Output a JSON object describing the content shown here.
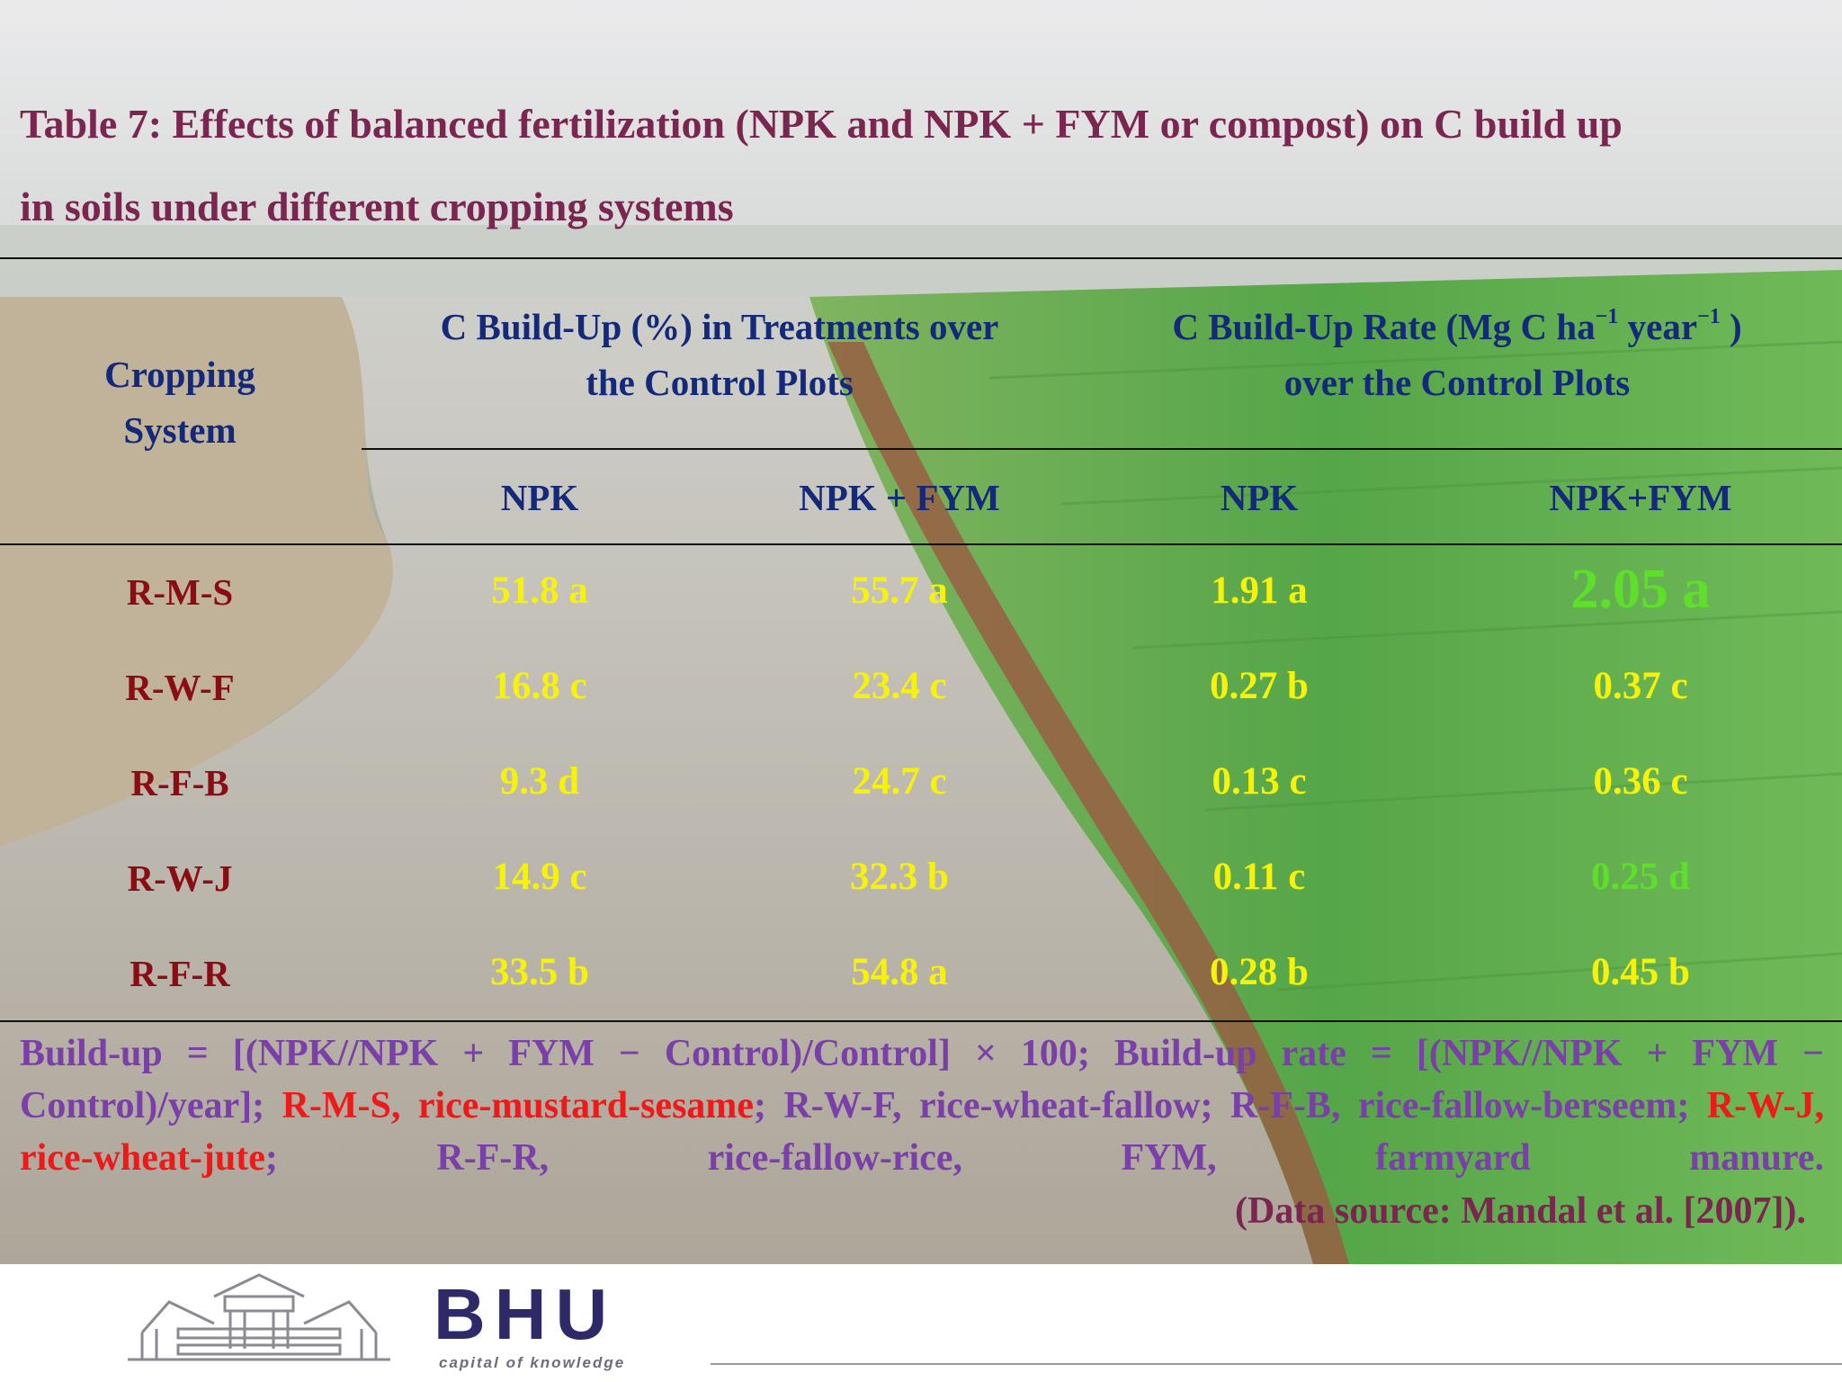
{
  "title_line1": "Table 7: Effects of balanced fertilization (NPK and NPK + FYM or compost) on C build up",
  "title_line2": "in soils under different cropping systems",
  "table": {
    "col0_line1": "Cropping",
    "col0_line2": "System",
    "group1_line1": "C Build-Up (%) in Treatments over",
    "group1_line2": "the Control Plots",
    "group2_line1_pre": "C Build-Up Rate (Mg C ha",
    "group2_sup1": "−1",
    "group2_line1_mid": " year",
    "group2_sup2": "−1",
    "group2_line1_post": " )",
    "group2_line2": "over the Control Plots",
    "sub_npk_1": "NPK",
    "sub_npkfym_1": "NPK + FYM",
    "sub_npk_2": "NPK",
    "sub_npkfym_2": "NPK+FYM",
    "rows": [
      {
        "system": "R-M-S",
        "v1": "51.8 a",
        "v2": "55.7 a",
        "v3": "1.91 a",
        "v4": "2.05 a"
      },
      {
        "system": "R-W-F",
        "v1": "16.8 c",
        "v2": "23.4 c",
        "v3": "0.27 b",
        "v4": "0.37 c"
      },
      {
        "system": "R-F-B",
        "v1": "9.3 d",
        "v2": "24.7 c",
        "v3": "0.13 c",
        "v4": "0.36 c"
      },
      {
        "system": "R-W-J",
        "v1": "14.9 c",
        "v2": "32.3 b",
        "v3": "0.11 c",
        "v4": "0.25 d"
      },
      {
        "system": "R-F-R",
        "v1": "33.5 b",
        "v2": "54.8 a",
        "v3": "0.28 b",
        "v4": "0.45 b"
      }
    ]
  },
  "footnote": {
    "p1": "Build-up = [(NPK//NPK + FYM − Control)/Control] × 100; Build-up rate = [(NPK//NPK + FYM − Control)/year]; ",
    "rms": "R-M-S, rice-mustard-sesame",
    "p2": "; R-W-F, rice-wheat-fallow; R-F-B, rice-fallow-berseem; ",
    "rwj": "R-W-J, rice-wheat-jute",
    "p3": "; R-F-R, rice-fallow-rice, FYM, farmyard manure.",
    "source": "(Data source: Mandal et al. [2007])."
  },
  "footer": {
    "logo_text": "BHU",
    "tagline": "capital of knowledge"
  },
  "colors": {
    "title": "#7b2650",
    "header": "#14297a",
    "row_label": "#8b0d14",
    "value": "#f7f20a",
    "value_highlight": "#5ee02a",
    "footnote": "#7a3fa8",
    "footnote_red": "#ee1a1a"
  }
}
